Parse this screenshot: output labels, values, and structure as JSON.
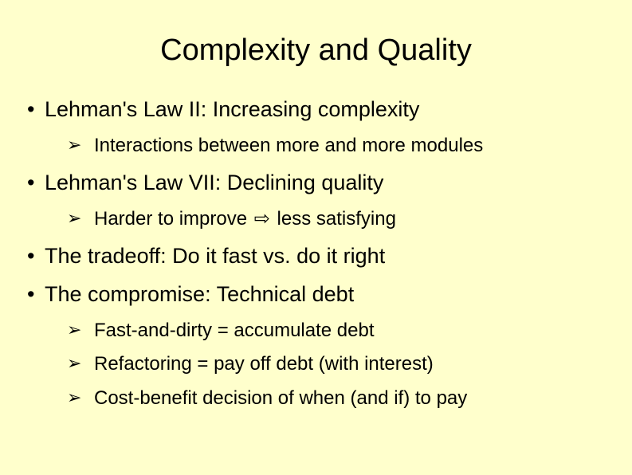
{
  "background_color": "#ffffcc",
  "text_color": "#000000",
  "title": {
    "text": "Complexity and Quality",
    "fontsize": 38
  },
  "bullets": {
    "l1_fontsize": 27,
    "l2_fontsize": 24,
    "items": [
      {
        "text": "Lehman's Law II: Increasing complexity",
        "sub": [
          {
            "text": "Interactions between more and more modules"
          }
        ]
      },
      {
        "text": "Lehman's Law VII: Declining quality",
        "sub": [
          {
            "pre": "Harder to improve ",
            "arrow": "⇨",
            "post": " less satisfying"
          }
        ]
      },
      {
        "text": "The tradeoff: Do it fast vs. do it right",
        "sub": []
      },
      {
        "text": "The compromise: Technical debt",
        "sub": [
          {
            "text": "Fast-and-dirty = accumulate debt"
          },
          {
            "text": "Refactoring = pay off debt (with interest)"
          },
          {
            "text": "Cost-benefit decision of when (and if) to pay"
          }
        ]
      }
    ]
  }
}
